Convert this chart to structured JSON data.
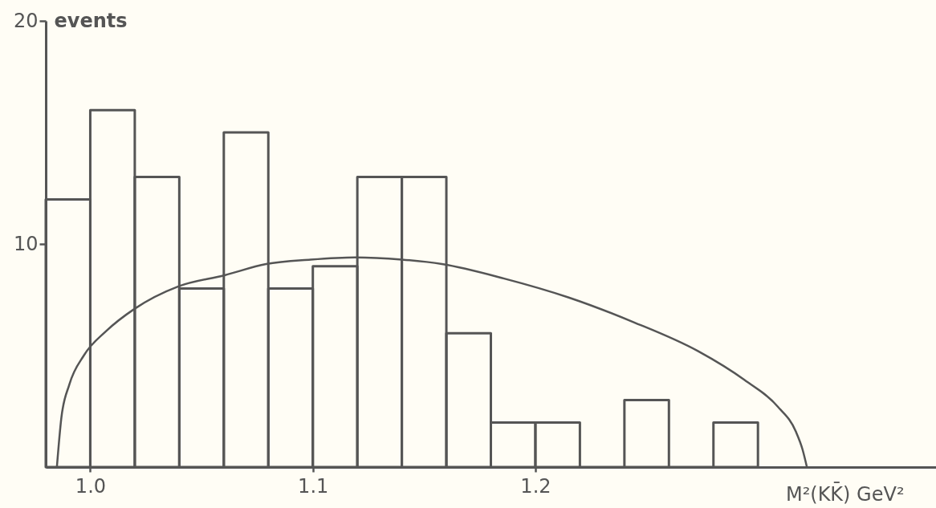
{
  "chart_data": {
    "type": "histogram",
    "xlabel": "M²(KK̄)   GeV²",
    "ylabel": "events",
    "xlim": [
      0.98,
      1.38
    ],
    "xticks": [
      {
        "value": 1.0,
        "label": "1.0"
      },
      1.1,
      1.2
    ],
    "ylim": [
      0,
      20
    ],
    "yticks": [
      10,
      20
    ],
    "series": [
      {
        "color": "#555555",
        "bins": [
          0.98,
          1.0,
          1.02,
          1.04,
          1.06,
          1.08,
          1.1,
          1.12,
          1.14,
          1.16,
          1.18,
          1.2,
          1.22,
          1.24,
          1.26,
          1.28,
          1.3
        ],
        "values": [
          12,
          16,
          13,
          8,
          15,
          8,
          9,
          13,
          13,
          6,
          2,
          2,
          0,
          3,
          0,
          2
        ]
      },
      {
        "type": "line",
        "color": "#555555",
        "x": [
          0.985,
          0.987,
          0.9906,
          0.9971,
          1.0072,
          1.02,
          1.0396,
          1.0604,
          1.079,
          1.099,
          1.119,
          1.14,
          1.158,
          1.186,
          1.215,
          1.244,
          1.273,
          1.294,
          1.309,
          1.317,
          1.32,
          1.322
        ],
        "values": [
          0,
          2.2,
          3.7,
          5.0,
          6.1,
          7.1,
          8.1,
          8.6,
          9.1,
          9.3,
          9.4,
          9.3,
          9.1,
          8.45,
          7.6,
          6.5,
          5.2,
          3.9,
          2.7,
          1.6,
          0.8,
          0
        ]
      }
    ]
  }
}
